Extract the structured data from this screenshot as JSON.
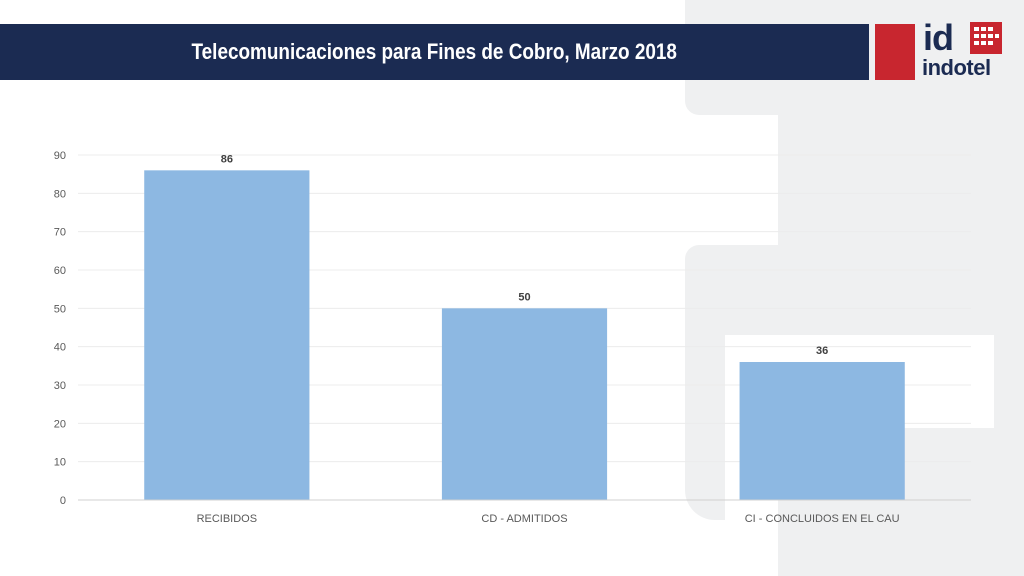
{
  "header": {
    "title": "Telecomunicaciones para Fines de Cobro, Marzo 2018"
  },
  "logo": {
    "mark": "id",
    "wordmark": "indotel"
  },
  "colors": {
    "header_bg": "#1b2b52",
    "accent_red": "#c8262f",
    "bar": "#8db8e2",
    "background_shape": "#eff0f1"
  },
  "chart_data": {
    "type": "bar",
    "categories": [
      "RECIBIDOS",
      "CD - ADMITIDOS",
      "CI - CONCLUIDOS EN EL CAU"
    ],
    "values": [
      86,
      50,
      36
    ],
    "data_labels": [
      "86",
      "50",
      "36"
    ],
    "title": "",
    "xlabel": "",
    "ylabel": "",
    "ylim": [
      0,
      90
    ],
    "yticks": [
      "0",
      "10",
      "20",
      "30",
      "40",
      "50",
      "60",
      "70",
      "80",
      "90"
    ],
    "grid": true,
    "legend": "none"
  }
}
